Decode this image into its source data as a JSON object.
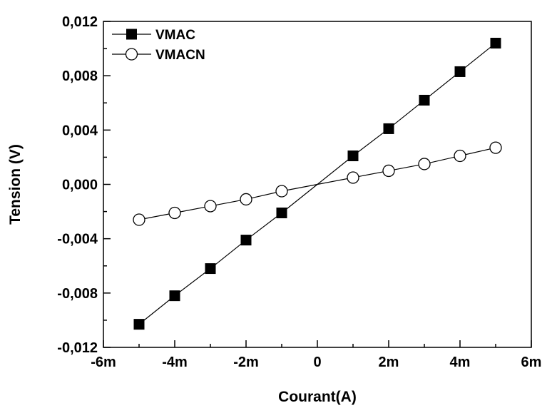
{
  "chart_data": {
    "type": "line",
    "title": "",
    "xlabel": "Courant(A)",
    "ylabel": "Tension (V)",
    "xlim": [
      -0.006,
      0.006
    ],
    "ylim": [
      -0.012,
      0.012
    ],
    "x_ticks": [
      {
        "value": -0.006,
        "label": "-6m"
      },
      {
        "value": -0.004,
        "label": "-4m"
      },
      {
        "value": -0.002,
        "label": "-2m"
      },
      {
        "value": 0,
        "label": "0"
      },
      {
        "value": 0.002,
        "label": "2m"
      },
      {
        "value": 0.004,
        "label": "4m"
      },
      {
        "value": 0.006,
        "label": "6m"
      }
    ],
    "y_ticks": [
      {
        "value": -0.012,
        "label": "-0,012"
      },
      {
        "value": -0.008,
        "label": "-0,008"
      },
      {
        "value": -0.004,
        "label": "-0,004"
      },
      {
        "value": 0,
        "label": "0,000"
      },
      {
        "value": 0.004,
        "label": "0,004"
      },
      {
        "value": 0.008,
        "label": "0,008"
      },
      {
        "value": 0.012,
        "label": "0,012"
      }
    ],
    "x_minor_step": 0.001,
    "y_minor_step": 0.002,
    "grid": false,
    "legend_position": "top-left",
    "series": [
      {
        "name": "VMAC",
        "marker": "filled-square",
        "color": "#000000",
        "points": [
          [
            -0.005,
            -0.0103
          ],
          [
            -0.004,
            -0.0082
          ],
          [
            -0.003,
            -0.0062
          ],
          [
            -0.002,
            -0.0041
          ],
          [
            -0.001,
            -0.0021
          ],
          [
            0,
            0
          ],
          [
            0.001,
            0.0021
          ],
          [
            0.002,
            0.0041
          ],
          [
            0.003,
            0.0062
          ],
          [
            0.004,
            0.0083
          ],
          [
            0.005,
            0.0104
          ]
        ],
        "hidden_marker_x": [
          0
        ]
      },
      {
        "name": "VMACN",
        "marker": "open-circle",
        "color": "#000000",
        "points": [
          [
            -0.005,
            -0.0026
          ],
          [
            -0.004,
            -0.0021
          ],
          [
            -0.003,
            -0.0016
          ],
          [
            -0.002,
            -0.0011
          ],
          [
            -0.001,
            -0.0005
          ],
          [
            0,
            0
          ],
          [
            0.001,
            0.0005
          ],
          [
            0.002,
            0.001
          ],
          [
            0.003,
            0.0015
          ],
          [
            0.004,
            0.0021
          ],
          [
            0.005,
            0.0027
          ]
        ],
        "hidden_marker_x": [
          0
        ]
      }
    ]
  }
}
